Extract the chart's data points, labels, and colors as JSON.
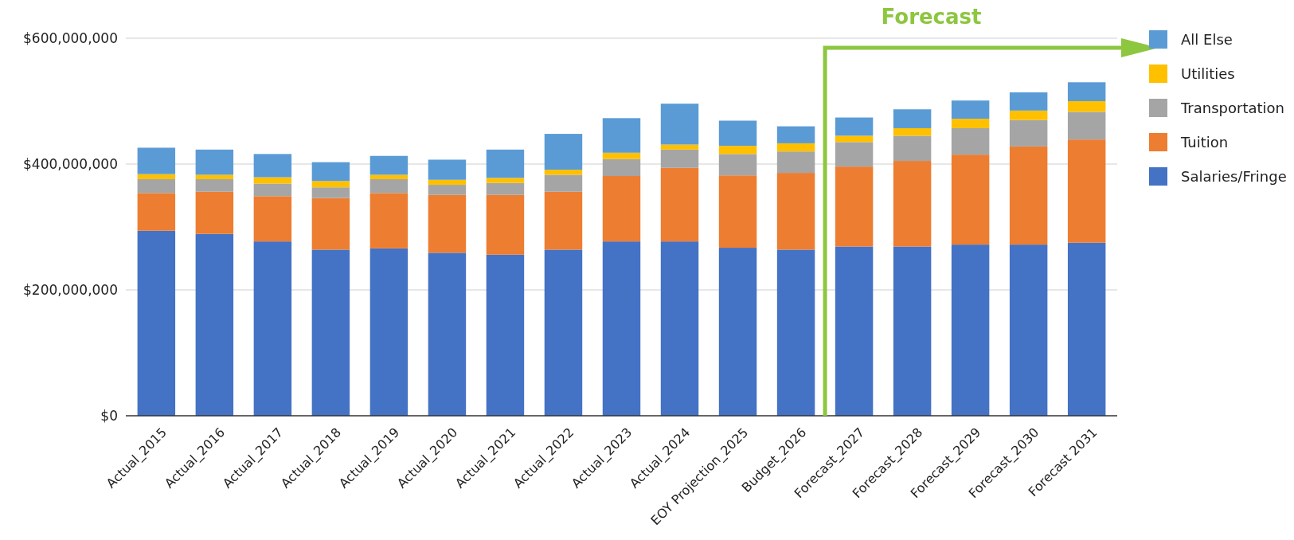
{
  "chart_data": {
    "type": "bar",
    "stacked": true,
    "categories": [
      "Actual_2015",
      "Actual_2016",
      "Actual_2017",
      "Actual_2018",
      "Actual_2019",
      "Actual_2020",
      "Actual_2021",
      "Actual_2022",
      "Actual_2023",
      "Actual_2024",
      "EOY Projection_2025",
      "Budget_2026",
      "Forecast_2027",
      "Forecast_2028",
      "Forecast_2029",
      "Forecast_2030",
      "Forecast 2031"
    ],
    "series": [
      {
        "name": "Salaries/Fringe",
        "color": "#4472c4",
        "values": [
          294000000,
          289000000,
          277000000,
          264000000,
          266000000,
          259000000,
          256000000,
          264000000,
          277000000,
          277000000,
          267000000,
          264000000,
          269000000,
          269000000,
          272000000,
          272000000,
          275000000
        ]
      },
      {
        "name": "Tuition",
        "color": "#ed7d31",
        "values": [
          60000000,
          67000000,
          72000000,
          82000000,
          88000000,
          92000000,
          95000000,
          92000000,
          104000000,
          117000000,
          115000000,
          122000000,
          127000000,
          136000000,
          143000000,
          156000000,
          164000000
        ]
      },
      {
        "name": "Transportation",
        "color": "#a5a5a5",
        "values": [
          22000000,
          20000000,
          20000000,
          17000000,
          22000000,
          16000000,
          19000000,
          27000000,
          27000000,
          29000000,
          34000000,
          34000000,
          39000000,
          40000000,
          42000000,
          42000000,
          44000000
        ]
      },
      {
        "name": "Utilities",
        "color": "#ffc000",
        "values": [
          8000000,
          7000000,
          10000000,
          10000000,
          7000000,
          8000000,
          8000000,
          8000000,
          10000000,
          8000000,
          13000000,
          13000000,
          10000000,
          12000000,
          15000000,
          15000000,
          17000000
        ]
      },
      {
        "name": "All Else",
        "color": "#5b9bd5",
        "values": [
          42000000,
          40000000,
          37000000,
          30000000,
          30000000,
          32000000,
          45000000,
          57000000,
          55000000,
          65000000,
          40000000,
          27000000,
          29000000,
          30000000,
          29000000,
          29000000,
          30000000
        ]
      }
    ],
    "ylim": [
      0,
      600000000
    ],
    "yticks": [
      {
        "value": 0,
        "label": "$0"
      },
      {
        "value": 200000000,
        "label": "$200,000,000"
      },
      {
        "value": 400000000,
        "label": "$400,000,000"
      },
      {
        "value": 600000000,
        "label": "$600,000,000"
      }
    ],
    "grid": "y",
    "legend": "right",
    "annotations": [
      "Forecast"
    ]
  }
}
